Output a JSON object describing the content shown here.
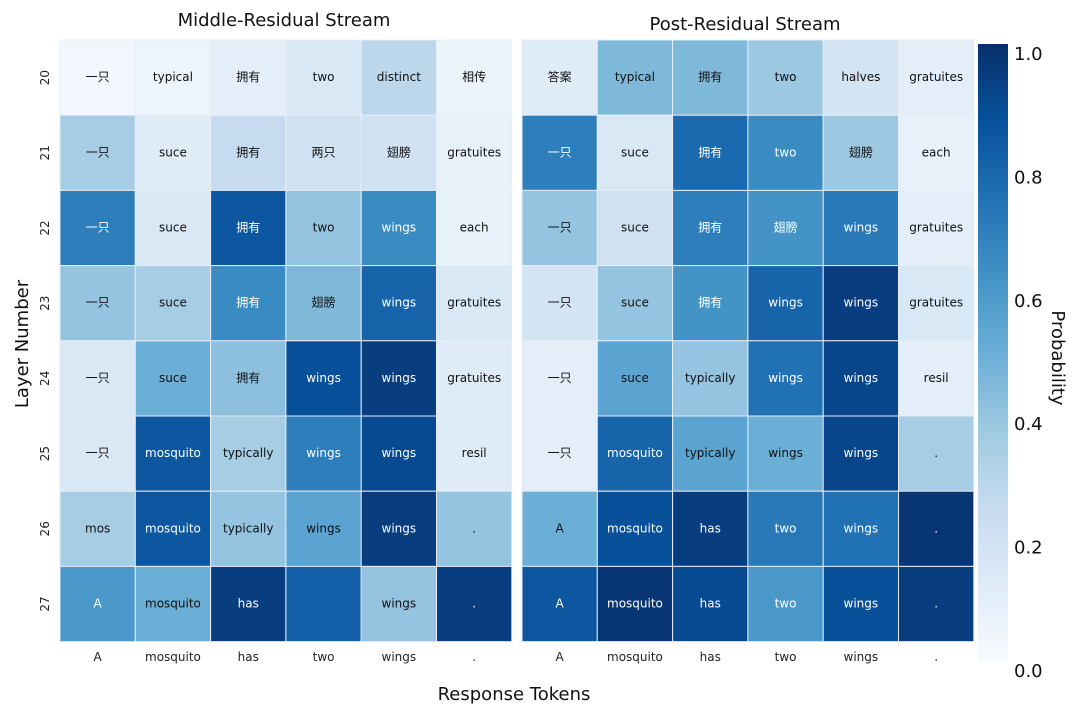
{
  "chart_data": {
    "type": "heatmap",
    "xlabel": "Response Tokens",
    "ylabel": "Layer Number",
    "colorbar": {
      "label": "Probability",
      "range": [
        0.0,
        1.0
      ],
      "ticks": [
        "0.0",
        "0.2",
        "0.4",
        "0.6",
        "0.8",
        "1.0"
      ],
      "colormap": "Blues"
    },
    "x_ticks": [
      "A",
      "mosquito",
      "has",
      "two",
      "wings",
      "."
    ],
    "y_ticks": [
      "20",
      "21",
      "22",
      "23",
      "24",
      "25",
      "26",
      "27"
    ],
    "panels": [
      {
        "title": "Middle-Residual Stream",
        "tokens": [
          [
            "一只",
            "typical",
            "拥有",
            "two",
            "distinct",
            "相传"
          ],
          [
            "一只",
            "suce",
            "拥有",
            "两只",
            "翅膀",
            "gratuites"
          ],
          [
            "一只",
            "suce",
            "拥有",
            "two",
            "wings",
            "each"
          ],
          [
            "一只",
            "suce",
            "拥有",
            "翅膀",
            "wings",
            "gratuites"
          ],
          [
            "一只",
            "suce",
            "拥有",
            "wings",
            "wings",
            "gratuites"
          ],
          [
            "一只",
            "mosquito",
            "typically",
            "wings",
            "wings",
            "resil"
          ],
          [
            "mos",
            "mosquito",
            "typically",
            "wings",
            "wings",
            "."
          ],
          [
            "A",
            "mosquito",
            "has",
            "",
            "wings",
            "."
          ]
        ],
        "values": [
          [
            0.03,
            0.05,
            0.1,
            0.15,
            0.28,
            0.06
          ],
          [
            0.35,
            0.12,
            0.25,
            0.2,
            0.2,
            0.08
          ],
          [
            0.7,
            0.15,
            0.85,
            0.4,
            0.65,
            0.08
          ],
          [
            0.4,
            0.35,
            0.65,
            0.45,
            0.8,
            0.15
          ],
          [
            0.15,
            0.5,
            0.42,
            0.88,
            0.95,
            0.12
          ],
          [
            0.15,
            0.85,
            0.35,
            0.7,
            0.9,
            0.12
          ],
          [
            0.35,
            0.85,
            0.4,
            0.55,
            0.95,
            0.4
          ],
          [
            0.6,
            0.5,
            0.95,
            0.82,
            0.4,
            0.95
          ]
        ]
      },
      {
        "title": "Post-Residual Stream",
        "tokens": [
          [
            "答案",
            "typical",
            "拥有",
            "two",
            "halves",
            "gratuites"
          ],
          [
            "一只",
            "suce",
            "拥有",
            "two",
            "翅膀",
            "each"
          ],
          [
            "一只",
            "suce",
            "拥有",
            "翅膀",
            "wings",
            "gratuites"
          ],
          [
            "一只",
            "suce",
            "拥有",
            "wings",
            "wings",
            "gratuites"
          ],
          [
            "一只",
            "suce",
            "typically",
            "wings",
            "wings",
            "resil"
          ],
          [
            "一只",
            "mosquito",
            "typically",
            "wings",
            "wings",
            "."
          ],
          [
            "A",
            "mosquito",
            "has",
            "two",
            "wings",
            "."
          ],
          [
            "A",
            "mosquito",
            "has",
            "two",
            "wings",
            "."
          ]
        ],
        "values": [
          [
            0.12,
            0.45,
            0.45,
            0.38,
            0.18,
            0.1
          ],
          [
            0.7,
            0.15,
            0.78,
            0.65,
            0.38,
            0.08
          ],
          [
            0.4,
            0.2,
            0.7,
            0.62,
            0.72,
            0.1
          ],
          [
            0.18,
            0.4,
            0.62,
            0.8,
            0.95,
            0.15
          ],
          [
            0.1,
            0.55,
            0.4,
            0.75,
            0.92,
            0.1
          ],
          [
            0.1,
            0.8,
            0.55,
            0.5,
            0.92,
            0.35
          ],
          [
            0.5,
            0.88,
            0.95,
            0.72,
            0.75,
            0.98
          ],
          [
            0.85,
            0.98,
            0.9,
            0.6,
            0.88,
            0.95
          ]
        ]
      }
    ]
  }
}
